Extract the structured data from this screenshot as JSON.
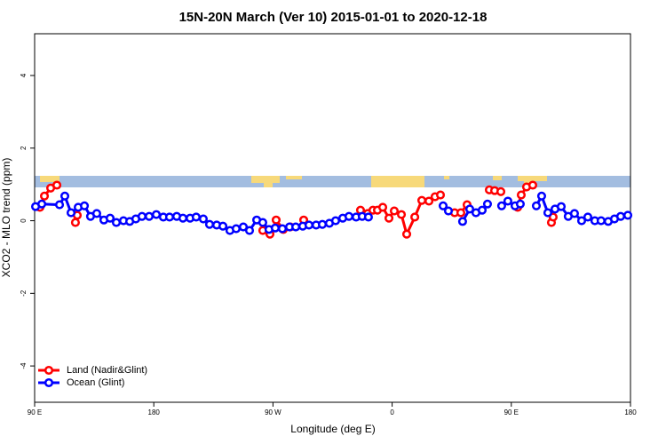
{
  "chart_data": {
    "type": "line",
    "title": "15N-20N March (Ver 10)   2015-01-01 to 2020-12-18",
    "x_label": "Longitude (deg E)",
    "y_label": "XCO2 - MLO trend (ppm)",
    "xlim": [
      90,
      540
    ],
    "ylim": [
      -5,
      5.15
    ],
    "xticks": [
      {
        "value": 90,
        "label": "90 E"
      },
      180,
      {
        "value": 270,
        "label": "90 W"
      },
      {
        "value": 360,
        "label": "0"
      },
      {
        "value": 450,
        "label": "90 E"
      },
      {
        "value": 540,
        "label": "180"
      }
    ],
    "yticks": [
      -4,
      -2,
      0,
      2,
      4
    ],
    "legend": "bottom-left",
    "series": [
      {
        "name": "Land (Nadir&Glint)",
        "color": "#ff0000",
        "x": [
          94.0,
          97.4,
          102.1,
          106.8,
          114,
          120.8,
          122.2,
          190,
          262.3,
          267.7,
          270,
          272.4,
          277.8,
          283.1,
          288,
          293.2,
          315,
          336.1,
          341.5,
          345.5,
          348.9,
          352.9,
          357.6,
          361.6,
          367.0,
          371.0,
          377.1,
          382.4,
          387.8,
          392.4,
          396.5,
          402,
          407.2,
          411.9,
          416.6,
          425,
          433.4,
          437.4,
          442.1,
          448,
          454.8,
          457.5,
          461.5,
          466.2,
          473,
          480.3,
          481.6
        ],
        "values": [
          0.37,
          0.68,
          0.9,
          0.98,
          null,
          -0.05,
          0.15,
          null,
          -0.27,
          -0.37,
          null,
          0.02,
          -0.24,
          -0.17,
          null,
          0.02,
          null,
          0.29,
          0.2,
          0.29,
          0.29,
          0.37,
          0.07,
          0.27,
          0.17,
          -0.37,
          0.1,
          0.56,
          0.54,
          0.66,
          0.71,
          null,
          0.22,
          0.22,
          0.44,
          null,
          0.85,
          0.83,
          0.8,
          null,
          0.37,
          0.71,
          0.93,
          0.98,
          null,
          -0.05,
          0.1
        ]
      },
      {
        "name": "Ocean (Glint)",
        "color": "#0000ff",
        "x": [
          90.7,
          95.4,
          108.8,
          112.8,
          117.5,
          122.9,
          127.6,
          132.2,
          136.9,
          142.3,
          147.0,
          151.7,
          157.1,
          161.8,
          166.4,
          171.1,
          176.5,
          181.9,
          187.2,
          191.9,
          197.3,
          202.0,
          207.4,
          212.0,
          217.4,
          222.1,
          227.5,
          232.2,
          237.5,
          242.2,
          247.6,
          252.3,
          257.7,
          262.3,
          267.0,
          271.7,
          277.1,
          282.5,
          287.2,
          292.5,
          297.2,
          302.6,
          307.3,
          312.6,
          317.3,
          322.7,
          327.4,
          332.8,
          337.4,
          342.1,
          370,
          398.5,
          402.5,
          407,
          413.2,
          418.6,
          423.3,
          428.0,
          432.0,
          436,
          442.7,
          447.4,
          452.8,
          456.8,
          462,
          468.9,
          472.9,
          477.6,
          483.0,
          487.7,
          493.0,
          497.7,
          503.1,
          507.8,
          513.1,
          517.8,
          523.2,
          527.9,
          532.6,
          538.0
        ],
        "values": [
          0.39,
          0.46,
          0.44,
          0.68,
          0.22,
          0.37,
          0.41,
          0.12,
          0.2,
          0.02,
          0.07,
          -0.05,
          0.0,
          -0.02,
          0.05,
          0.12,
          0.12,
          0.17,
          0.1,
          0.1,
          0.12,
          0.07,
          0.07,
          0.1,
          0.05,
          -0.1,
          -0.12,
          -0.15,
          -0.27,
          -0.22,
          -0.17,
          -0.27,
          0.02,
          -0.05,
          -0.24,
          -0.2,
          -0.22,
          -0.17,
          -0.17,
          -0.15,
          -0.12,
          -0.12,
          -0.1,
          -0.07,
          0.0,
          0.07,
          0.12,
          0.1,
          0.12,
          0.1,
          null,
          0.41,
          0.27,
          null,
          -0.02,
          0.32,
          0.22,
          0.29,
          0.46,
          null,
          0.41,
          0.54,
          0.41,
          0.46,
          null,
          0.41,
          0.68,
          0.22,
          0.32,
          0.39,
          0.12,
          0.2,
          0.0,
          0.1,
          0.0,
          0.0,
          -0.02,
          0.05,
          0.12,
          0.15
        ]
      }
    ]
  }
}
